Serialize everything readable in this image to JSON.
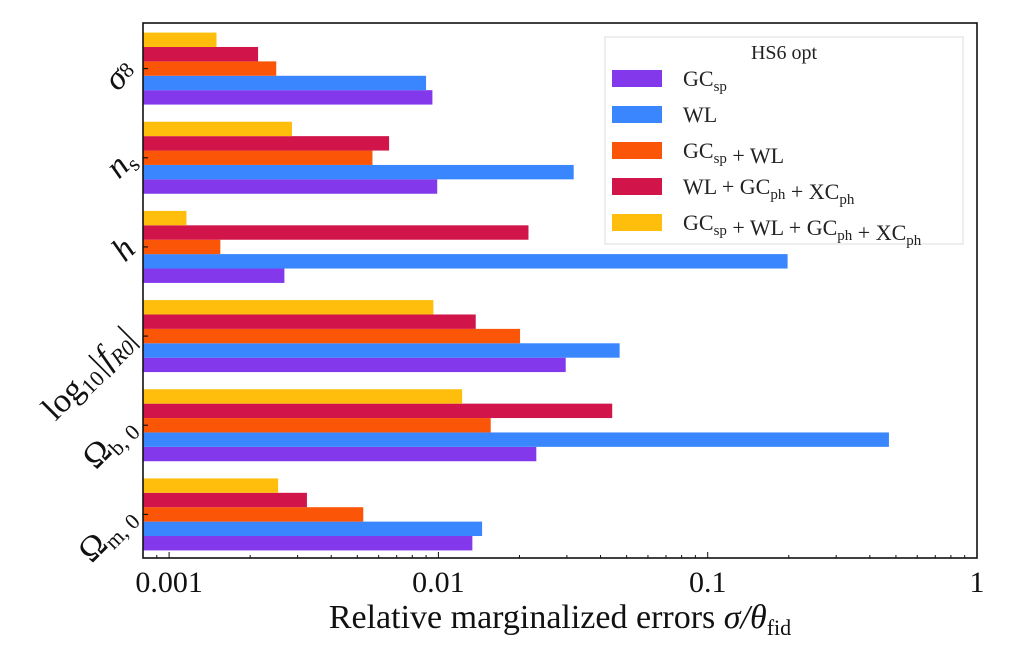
{
  "chart_data": {
    "type": "bar",
    "orientation": "horizontal",
    "xscale": "log",
    "xlim": [
      0.0008,
      1
    ],
    "xticks": [
      0.001,
      0.01,
      0.1,
      1
    ],
    "xtick_labels": [
      "0.001",
      "0.01",
      "0.1",
      "1"
    ],
    "xlabel": "Relative marginalized errors σ/θ_fid",
    "xlabel_parts": {
      "main": "Relative marginalized errors ",
      "sym": "σ/θ",
      "sub": "fid"
    },
    "ylabel": "",
    "grid": false,
    "legend_title": "HS6 opt",
    "legend_position": "top-right",
    "categories": [
      "σ8",
      "n_s",
      "h",
      "log10|f_R0|",
      "Ω_b,0",
      "Ω_m,0"
    ],
    "category_labels": [
      {
        "main": "σ",
        "sub": "8"
      },
      {
        "main": "n",
        "sub": "s"
      },
      {
        "main": "h",
        "sub": ""
      },
      {
        "main": "log",
        "sub": "10",
        "rest": "|f",
        "sub2": "R0",
        "end": "|"
      },
      {
        "main": "Ω",
        "sub": "b, 0"
      },
      {
        "main": "Ω",
        "sub": "m, 0"
      }
    ],
    "series": [
      {
        "name": "GC_sp",
        "label": {
          "a": "GC",
          "a_sub": "sp"
        },
        "color": "#8338ec",
        "values": [
          0.0095,
          0.0099,
          0.00268,
          0.0297,
          0.0231,
          0.01337
        ]
      },
      {
        "name": "WL",
        "label": {
          "a": "WL"
        },
        "color": "#3a86ff",
        "values": [
          0.009,
          0.0318,
          0.198,
          0.0471,
          0.471,
          0.01453
        ]
      },
      {
        "name": "GC_sp + WL",
        "label": {
          "a": "GC",
          "a_sub": "sp",
          "b": " + WL"
        },
        "color": "#fb5607",
        "values": [
          0.0025,
          0.00569,
          0.00155,
          0.0201,
          0.01564,
          0.00526
        ]
      },
      {
        "name": "WL + GC_ph + XC_ph",
        "label": {
          "a": "WL + GC",
          "a_sub": "ph",
          "b": " + XC",
          "b_sub": "ph"
        },
        "color": "#d1144a",
        "values": [
          0.00214,
          0.00656,
          0.0216,
          0.01376,
          0.0442,
          0.00325
        ]
      },
      {
        "name": "GC_sp + WL + GC_ph + XC_ph",
        "label": {
          "a": "GC",
          "a_sub": "sp",
          "b": " + WL + GC",
          "b_sub": "ph",
          "c": " + XC",
          "c_sub": "ph"
        },
        "color": "#ffbe0b",
        "values": [
          0.0015,
          0.00286,
          0.00116,
          0.00958,
          0.01225,
          0.00254
        ]
      }
    ]
  }
}
